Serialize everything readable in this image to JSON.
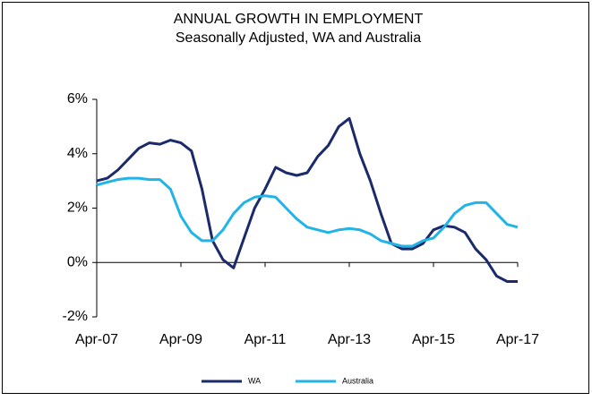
{
  "chart_data": {
    "type": "line",
    "title": "ANNUAL GROWTH  IN EMPLOYMENT",
    "subtitle": "Seasonally Adjusted, WA and Australia",
    "categories": [
      "Apr-07",
      null,
      null,
      null,
      null,
      null,
      null,
      null,
      "Apr-09",
      null,
      null,
      null,
      null,
      null,
      null,
      null,
      "Apr-11",
      null,
      null,
      null,
      null,
      null,
      null,
      null,
      "Apr-13",
      null,
      null,
      null,
      null,
      null,
      null,
      null,
      "Apr-15",
      null,
      null,
      null,
      null,
      null,
      null,
      null,
      "Apr-17"
    ],
    "series": [
      {
        "name": "WA",
        "color": "#1b2a6b",
        "values": [
          3.0,
          3.1,
          3.4,
          3.8,
          4.2,
          4.4,
          4.35,
          4.5,
          4.4,
          4.1,
          2.7,
          0.8,
          0.1,
          -0.2,
          0.9,
          2.0,
          2.7,
          3.5,
          3.3,
          3.2,
          3.3,
          3.9,
          4.3,
          5.0,
          5.3,
          4.0,
          3.0,
          1.8,
          0.7,
          0.5,
          0.5,
          0.7,
          1.2,
          1.35,
          1.3,
          1.1,
          0.5,
          0.1,
          -0.5,
          -0.7,
          -0.7
        ]
      },
      {
        "name": "Australia",
        "color": "#22b4e6",
        "values": [
          2.85,
          2.95,
          3.05,
          3.1,
          3.1,
          3.05,
          3.05,
          2.7,
          1.7,
          1.1,
          0.8,
          0.8,
          1.2,
          1.8,
          2.2,
          2.4,
          2.45,
          2.4,
          2.0,
          1.6,
          1.3,
          1.2,
          1.1,
          1.2,
          1.25,
          1.2,
          1.05,
          0.8,
          0.7,
          0.6,
          0.6,
          0.8,
          0.9,
          1.3,
          1.8,
          2.1,
          2.2,
          2.2,
          1.8,
          1.4,
          1.3
        ]
      }
    ],
    "ylim": [
      -2,
      6
    ],
    "yticks": [
      {
        "value": -2,
        "label": "-2%"
      },
      {
        "value": 0,
        "label": "0%"
      },
      {
        "value": 2,
        "label": "2%"
      },
      {
        "value": 4,
        "label": "4%"
      },
      {
        "value": 6,
        "label": "6%"
      }
    ],
    "legend": "bottom"
  }
}
